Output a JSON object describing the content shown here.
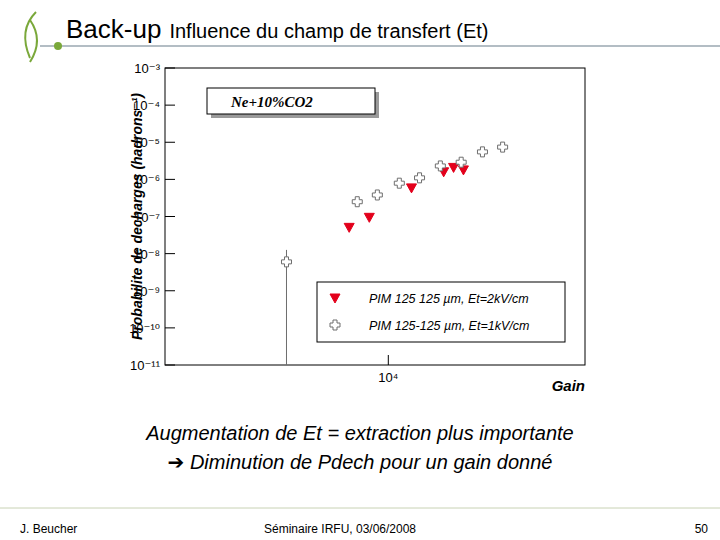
{
  "slide": {
    "title": "Back-up",
    "subtitle": "Influence du champ de transfert (Et)",
    "conclusion": [
      "Augmentation de Et = extraction plus importante",
      "➔ Diminution de Pdech pour un gain donné"
    ],
    "footer": {
      "author": "J. Beucher",
      "event": "Séminaire IRFU, 03/06/2008",
      "page": 50
    }
  },
  "chart_data": {
    "type": "scatter",
    "annotation": "Ne+10%CO2",
    "x_label": "Gain",
    "y_label": "Probabilite de decharges (hadrons⁻¹)",
    "log": true,
    "grid": false,
    "legend": "bottom-right",
    "xlim": [
      1000,
      76000
    ],
    "xticks": [
      {
        "value": 10000,
        "label": "10⁴"
      }
    ],
    "ylim": [
      1e-11,
      0.001
    ],
    "yticks": [
      {
        "value": 1e-11,
        "label": "10⁻¹¹"
      },
      {
        "value": 1e-10,
        "label": "10⁻¹⁰"
      },
      {
        "value": 1e-09,
        "label": "10⁻⁹"
      },
      {
        "value": 1e-08,
        "label": "10⁻⁸"
      },
      {
        "value": 1e-07,
        "label": "10⁻⁷"
      },
      {
        "value": 1e-06,
        "label": "10⁻⁶"
      },
      {
        "value": 1e-05,
        "label": "10⁻⁵"
      },
      {
        "value": 0.0001,
        "label": "10⁻⁴"
      },
      {
        "value": 0.001,
        "label": "10⁻³"
      }
    ],
    "series": [
      {
        "name": "PIM 125 125 µm, Et=2kV/cm",
        "color": "#e3001b",
        "marker": "triangle",
        "x": [
          6680,
          8220,
          12700,
          17700,
          19600,
          21700
        ],
        "values": [
          5.1e-08,
          9.5e-08,
          5.9e-07,
          1.6e-06,
          2.1e-06,
          1.8e-06
        ]
      },
      {
        "name": "PIM 125-125 µm, Et=1kV/cm",
        "color": "#6e6e6e",
        "marker": "cross",
        "x": [
          3500,
          7260,
          8930,
          11200,
          13800,
          17100,
          21200,
          26400,
          32500
        ],
        "values": [
          6e-09,
          2.5e-07,
          3.8e-07,
          7.9e-07,
          1.1e-06,
          2.3e-06,
          2.9e-06,
          5.5e-06,
          7.4e-06
        ],
        "y_low": [
          1e-11,
          null,
          null,
          null,
          null,
          null,
          null,
          null,
          null
        ],
        "y_high": [
          1.26e-08,
          null,
          null,
          null,
          null,
          null,
          null,
          null,
          null
        ]
      }
    ]
  }
}
